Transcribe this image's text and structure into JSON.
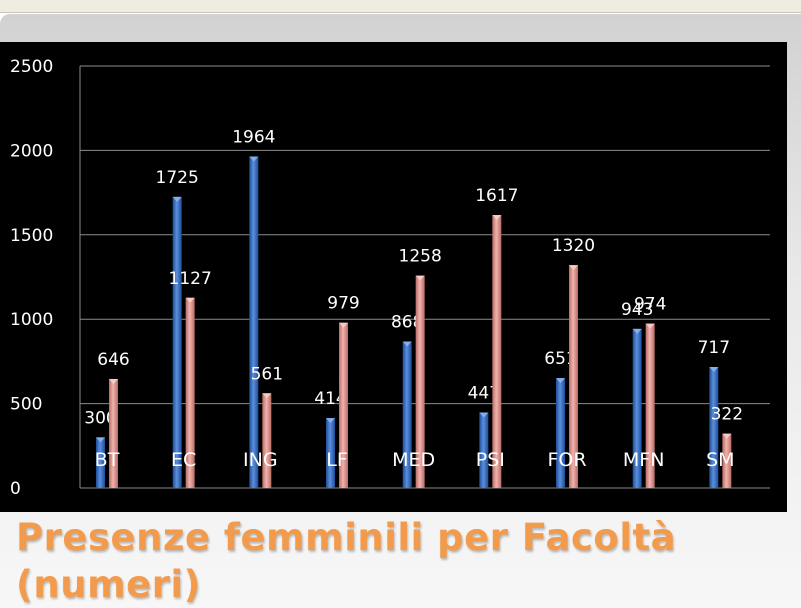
{
  "slide": {
    "title_line1": "Presenze femminili per Facoltà",
    "title_line2": "(numeri)"
  },
  "chart_data": {
    "type": "bar",
    "categories": [
      "BT",
      "EC",
      "ING",
      "LF",
      "MED",
      "PSI",
      "FOR",
      "MFN",
      "SM"
    ],
    "series": [
      {
        "values": [
          300,
          1725,
          1964,
          414,
          868,
          447,
          651,
          943,
          717
        ],
        "color": "#3f74c4"
      },
      {
        "values": [
          646,
          1127,
          561,
          979,
          1258,
          1617,
          1320,
          974,
          322
        ],
        "color": "#dc8f8a"
      }
    ],
    "ylim": [
      0,
      2500
    ],
    "yticks": [
      "0",
      "500",
      "1000",
      "1500",
      "2000",
      "2500"
    ],
    "grid": true,
    "data_labels": true,
    "background": "#000000",
    "text_color": "#ffffff"
  }
}
